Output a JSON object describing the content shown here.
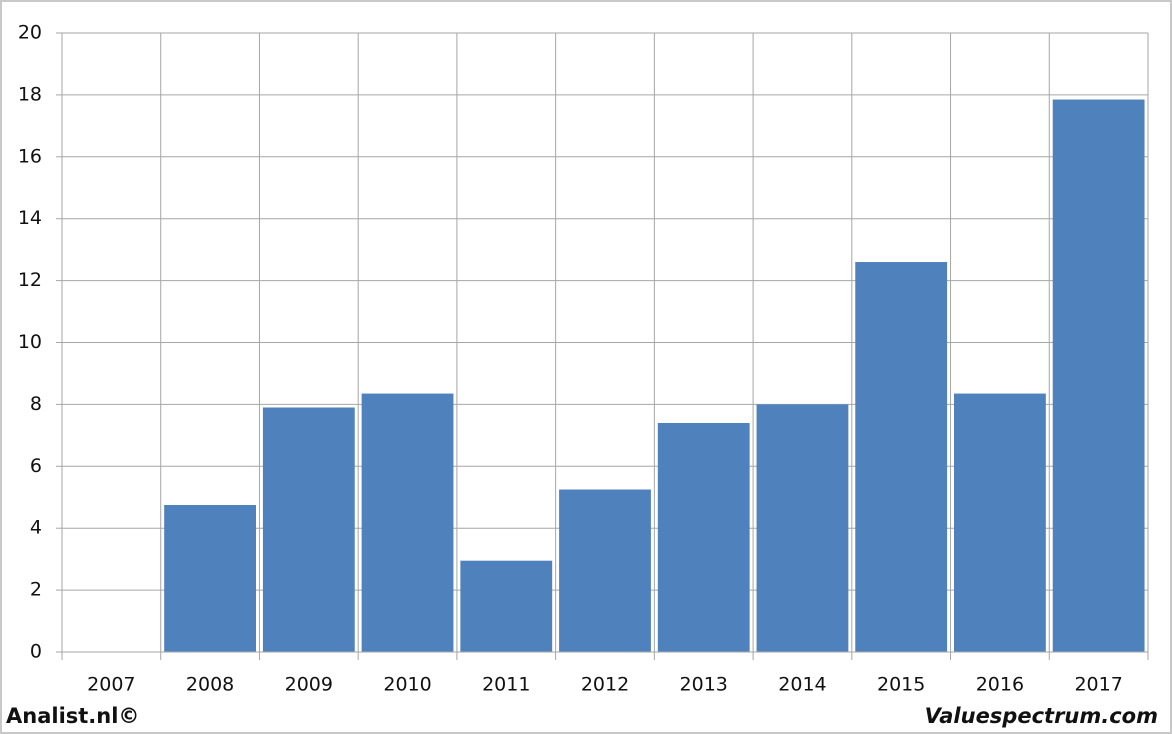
{
  "chart_data": {
    "type": "bar",
    "categories": [
      "2007",
      "2008",
      "2009",
      "2010",
      "2011",
      "2012",
      "2013",
      "2014",
      "2015",
      "2016",
      "2017"
    ],
    "values": [
      null,
      4.75,
      7.9,
      8.35,
      2.95,
      5.25,
      7.4,
      8.0,
      12.6,
      8.35,
      17.85
    ],
    "color": "#4f81bd",
    "ylim": [
      0,
      20
    ],
    "yticks": [
      0,
      2,
      4,
      6,
      8,
      10,
      12,
      14,
      16,
      18,
      20
    ],
    "grid": true
  },
  "footer": {
    "left": "Analist.nl©",
    "right": "Valuespectrum.com"
  }
}
